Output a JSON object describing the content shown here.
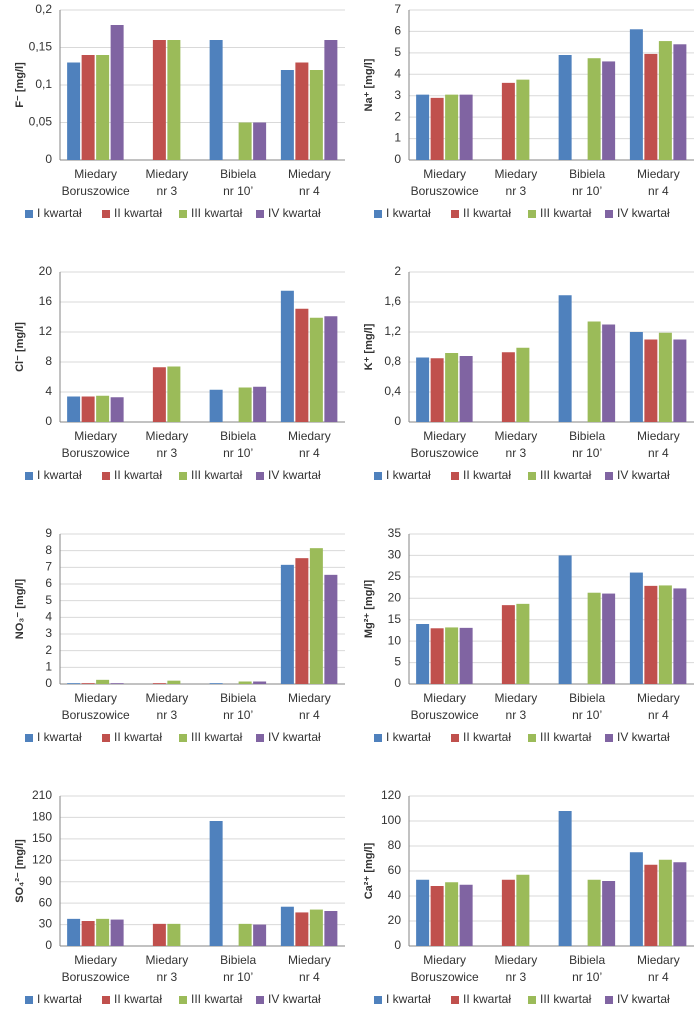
{
  "chart_data": [
    {
      "type": "bar",
      "ylabel": "F⁻ [mg/l]",
      "categories": [
        [
          "Miedary",
          "Boruszowice"
        ],
        [
          "Miedary",
          "nr 3"
        ],
        [
          "Bibiela",
          "nr 10’"
        ],
        [
          "Miedary",
          "nr 4"
        ]
      ],
      "ylim": [
        0,
        0.2
      ],
      "yticks": [
        0,
        {
          "value": 0.05,
          "label": "0,05"
        },
        {
          "value": 0.1,
          "label": "0,1"
        },
        {
          "value": 0.15,
          "label": "0,15"
        },
        {
          "value": 0.2,
          "label": "0,2"
        }
      ],
      "grid": true,
      "legend": "bottom",
      "series": [
        {
          "name": "I kwartał",
          "color": "#4f81bd",
          "values": [
            0.13,
            null,
            0.16,
            0.12
          ]
        },
        {
          "name": "II kwartał",
          "color": "#c0504d",
          "values": [
            0.14,
            0.16,
            null,
            0.13
          ]
        },
        {
          "name": "III kwartał",
          "color": "#9bbb59",
          "values": [
            0.14,
            0.16,
            0.05,
            0.12
          ]
        },
        {
          "name": "IV kwartał",
          "color": "#8064a2",
          "values": [
            0.18,
            null,
            0.05,
            0.16
          ]
        }
      ]
    },
    {
      "type": "bar",
      "ylabel": "Na⁺ [mg/l]",
      "categories": [
        [
          "Miedary",
          "Boruszowice"
        ],
        [
          "Miedary",
          "nr 3"
        ],
        [
          "Bibiela",
          "nr 10’"
        ],
        [
          "Miedary",
          "nr 4"
        ]
      ],
      "ylim": [
        0,
        7
      ],
      "yticks": [
        0,
        1,
        2,
        3,
        4,
        5,
        6,
        7
      ],
      "grid": true,
      "legend": "bottom",
      "series": [
        {
          "name": "I kwartał",
          "color": "#4f81bd",
          "values": [
            3.05,
            null,
            4.9,
            6.1
          ]
        },
        {
          "name": "II kwartał",
          "color": "#c0504d",
          "values": [
            2.9,
            3.6,
            null,
            4.95
          ]
        },
        {
          "name": "III kwartał",
          "color": "#9bbb59",
          "values": [
            3.05,
            3.75,
            4.75,
            5.55
          ]
        },
        {
          "name": "IV kwartał",
          "color": "#8064a2",
          "values": [
            3.05,
            null,
            4.6,
            5.4
          ]
        }
      ]
    },
    {
      "type": "bar",
      "ylabel": "Cl⁻ [mg/l]",
      "categories": [
        [
          "Miedary",
          "Boruszowice"
        ],
        [
          "Miedary",
          "nr 3"
        ],
        [
          "Bibiela",
          "nr 10’"
        ],
        [
          "Miedary",
          "nr 4"
        ]
      ],
      "ylim": [
        0,
        20
      ],
      "yticks": [
        0,
        4,
        8,
        12,
        16,
        20
      ],
      "grid": true,
      "legend": "bottom",
      "series": [
        {
          "name": "I kwartał",
          "color": "#4f81bd",
          "values": [
            3.4,
            null,
            4.3,
            17.5
          ]
        },
        {
          "name": "II kwartał",
          "color": "#c0504d",
          "values": [
            3.4,
            7.3,
            null,
            15.1
          ]
        },
        {
          "name": "III kwartał",
          "color": "#9bbb59",
          "values": [
            3.5,
            7.4,
            4.6,
            13.9
          ]
        },
        {
          "name": "IV kwartał",
          "color": "#8064a2",
          "values": [
            3.3,
            null,
            4.7,
            14.1
          ]
        }
      ]
    },
    {
      "type": "bar",
      "ylabel": "K⁺ [mg/l]",
      "categories": [
        [
          "Miedary",
          "Boruszowice"
        ],
        [
          "Miedary",
          "nr 3"
        ],
        [
          "Bibiela",
          "nr 10’"
        ],
        [
          "Miedary",
          "nr 4"
        ]
      ],
      "ylim": [
        0,
        2
      ],
      "yticks": [
        0,
        {
          "value": 0.4,
          "label": "0,4"
        },
        {
          "value": 0.8,
          "label": "0,8"
        },
        {
          "value": 1.2,
          "label": "1,2"
        },
        {
          "value": 1.6,
          "label": "1,6"
        },
        2
      ],
      "grid": true,
      "legend": "bottom",
      "series": [
        {
          "name": "I kwartał",
          "color": "#4f81bd",
          "values": [
            0.86,
            null,
            1.69,
            1.2
          ]
        },
        {
          "name": "II kwartał",
          "color": "#c0504d",
          "values": [
            0.85,
            0.93,
            null,
            1.1
          ]
        },
        {
          "name": "III kwartał",
          "color": "#9bbb59",
          "values": [
            0.92,
            0.99,
            1.34,
            1.19
          ]
        },
        {
          "name": "IV kwartał",
          "color": "#8064a2",
          "values": [
            0.88,
            null,
            1.3,
            1.1
          ]
        }
      ]
    },
    {
      "type": "bar",
      "ylabel": "NO₃⁻ [mg/l]",
      "categories": [
        [
          "Miedary",
          "Boruszowice"
        ],
        [
          "Miedary",
          "nr 3"
        ],
        [
          "Bibiela",
          "nr 10’"
        ],
        [
          "Miedary",
          "nr 4"
        ]
      ],
      "ylim": [
        0,
        9
      ],
      "yticks": [
        0,
        1,
        2,
        3,
        4,
        5,
        6,
        7,
        8,
        9
      ],
      "grid": true,
      "legend": "bottom",
      "series": [
        {
          "name": "I kwartał",
          "color": "#4f81bd",
          "values": [
            0.05,
            null,
            0.05,
            7.15
          ]
        },
        {
          "name": "II kwartał",
          "color": "#c0504d",
          "values": [
            0.05,
            0.05,
            null,
            7.55
          ]
        },
        {
          "name": "III kwartał",
          "color": "#9bbb59",
          "values": [
            0.25,
            0.2,
            0.15,
            8.15
          ]
        },
        {
          "name": "IV kwartał",
          "color": "#8064a2",
          "values": [
            0.05,
            null,
            0.15,
            6.55
          ]
        }
      ]
    },
    {
      "type": "bar",
      "ylabel": "Mg²⁺ [mg/l]",
      "categories": [
        [
          "Miedary",
          "Boruszowice"
        ],
        [
          "Miedary",
          "nr 3"
        ],
        [
          "Bibiela",
          "nr 10’"
        ],
        [
          "Miedary",
          "nr 4"
        ]
      ],
      "ylim": [
        0,
        35
      ],
      "yticks": [
        0,
        5,
        10,
        15,
        20,
        25,
        30,
        35
      ],
      "grid": true,
      "legend": "bottom",
      "series": [
        {
          "name": "I kwartał",
          "color": "#4f81bd",
          "values": [
            14,
            null,
            30,
            26
          ]
        },
        {
          "name": "II kwartał",
          "color": "#c0504d",
          "values": [
            13,
            18.4,
            null,
            22.9
          ]
        },
        {
          "name": "III kwartał",
          "color": "#9bbb59",
          "values": [
            13.2,
            18.7,
            21.3,
            23
          ]
        },
        {
          "name": "IV kwartał",
          "color": "#8064a2",
          "values": [
            13.1,
            null,
            21.1,
            22.3
          ]
        }
      ]
    },
    {
      "type": "bar",
      "ylabel": "SO₄²⁻ [mg/l]",
      "categories": [
        [
          "Miedary",
          "Boruszowice"
        ],
        [
          "Miedary",
          "nr 3"
        ],
        [
          "Bibiela",
          "nr 10’"
        ],
        [
          "Miedary",
          "nr 4"
        ]
      ],
      "ylim": [
        0,
        210
      ],
      "yticks": [
        0,
        30,
        60,
        90,
        120,
        150,
        180,
        210
      ],
      "grid": true,
      "legend": "bottom",
      "series": [
        {
          "name": "I kwartał",
          "color": "#4f81bd",
          "values": [
            38,
            null,
            175,
            55
          ]
        },
        {
          "name": "II kwartał",
          "color": "#c0504d",
          "values": [
            35,
            31,
            null,
            47
          ]
        },
        {
          "name": "III kwartał",
          "color": "#9bbb59",
          "values": [
            38,
            31,
            31,
            51
          ]
        },
        {
          "name": "IV kwartał",
          "color": "#8064a2",
          "values": [
            37,
            null,
            30,
            49
          ]
        }
      ]
    },
    {
      "type": "bar",
      "ylabel": "Ca²⁺ [mg/l]",
      "categories": [
        [
          "Miedary",
          "Boruszowice"
        ],
        [
          "Miedary",
          "nr 3"
        ],
        [
          "Bibiela",
          "nr 10’"
        ],
        [
          "Miedary",
          "nr 4"
        ]
      ],
      "ylim": [
        0,
        120
      ],
      "yticks": [
        0,
        20,
        40,
        60,
        80,
        100,
        120
      ],
      "grid": true,
      "legend": "bottom",
      "series": [
        {
          "name": "I kwartał",
          "color": "#4f81bd",
          "values": [
            53,
            null,
            108,
            75
          ]
        },
        {
          "name": "II kwartał",
          "color": "#c0504d",
          "values": [
            48,
            53,
            null,
            65
          ]
        },
        {
          "name": "III kwartał",
          "color": "#9bbb59",
          "values": [
            51,
            57,
            53,
            69
          ]
        },
        {
          "name": "IV kwartał",
          "color": "#8064a2",
          "values": [
            49,
            null,
            52,
            67
          ]
        }
      ]
    }
  ]
}
